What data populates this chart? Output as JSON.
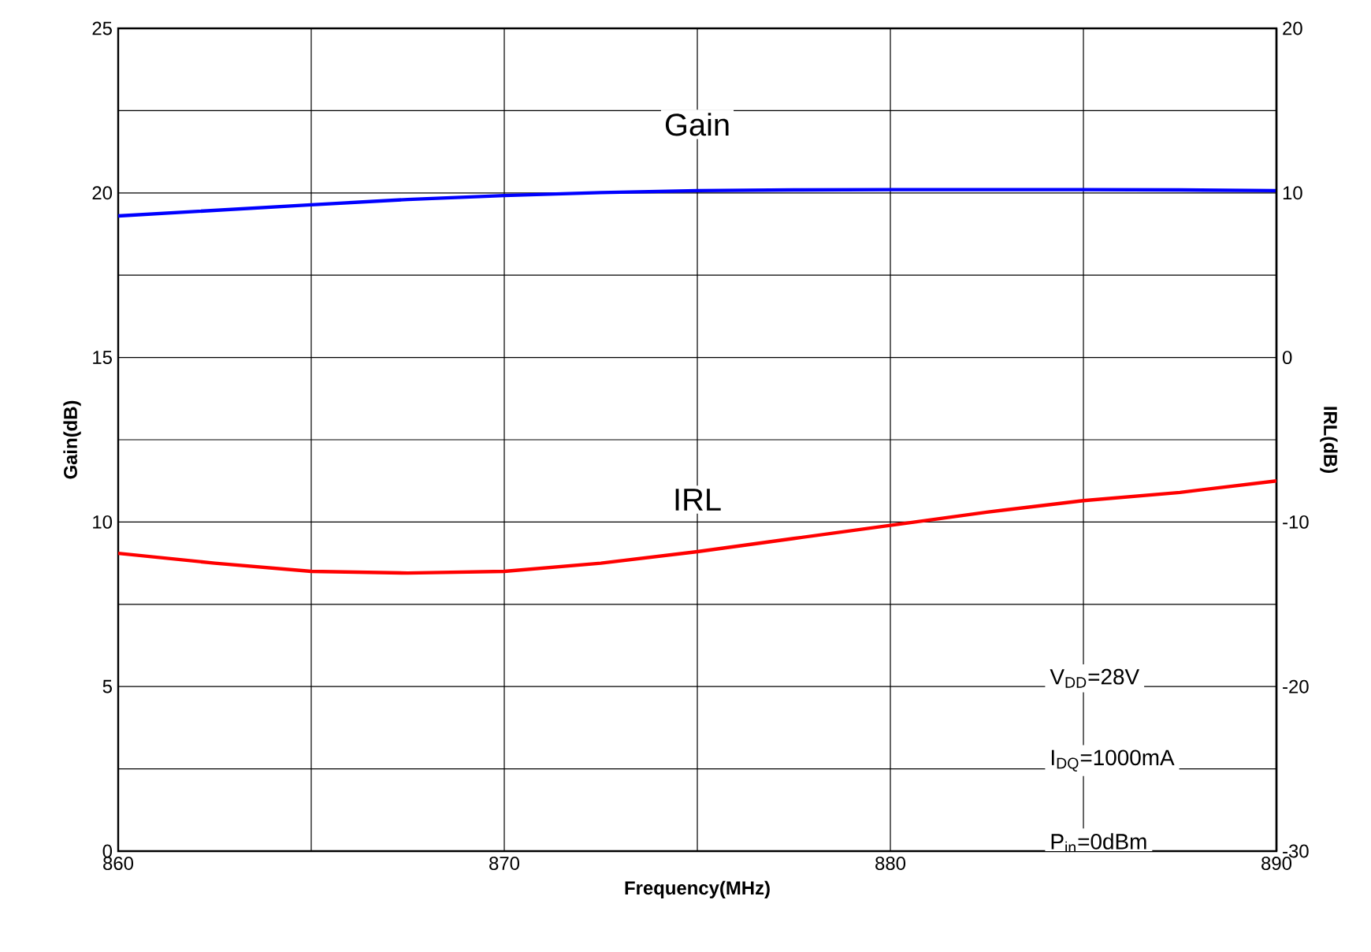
{
  "chart_data": {
    "type": "line",
    "xlabel": "Frequency(MHz)",
    "ylabel": "Gain(dB)",
    "y2label": "IRL(dB)",
    "xlim": [
      860,
      890
    ],
    "xticks": [
      860,
      {
        "value": 865,
        "label": null
      },
      870,
      {
        "value": 875,
        "label": null
      },
      880,
      {
        "value": 885,
        "label": null
      },
      890
    ],
    "ylim": [
      0,
      25
    ],
    "yticks": [
      0,
      {
        "value": 2.5,
        "label": null
      },
      5,
      {
        "value": 7.5,
        "label": null
      },
      10,
      {
        "value": 12.5,
        "label": null
      },
      15,
      {
        "value": 17.5,
        "label": null
      },
      20,
      {
        "value": 22.5,
        "label": null
      },
      25
    ],
    "y2lim": [
      -30,
      20
    ],
    "y2ticks": [
      -30,
      -20,
      -10,
      0,
      10,
      20
    ],
    "grid": true,
    "marker": "none",
    "line_style": "solid",
    "series": [
      {
        "name": "Gain",
        "color": "#0000ff",
        "x": [
          860,
          862.5,
          865,
          867.5,
          870,
          872.5,
          875,
          877.5,
          880,
          882.5,
          885,
          887.5,
          890
        ],
        "values": [
          19.3,
          19.47,
          19.64,
          19.8,
          19.92,
          20.01,
          20.07,
          20.09,
          20.1,
          20.1,
          20.1,
          20.09,
          20.07
        ]
      },
      {
        "name": "IRL",
        "color": "#ff0000",
        "axis": "y2",
        "x": [
          860,
          862.5,
          865,
          867.5,
          870,
          872.5,
          875,
          877.5,
          880,
          882.5,
          885,
          887.5,
          890
        ],
        "values": [
          -11.9,
          -12.5,
          -13,
          -13.1,
          -13,
          -12.5,
          -11.8,
          -11,
          -10.2,
          -9.4,
          -8.7,
          -8.2,
          -7.5
        ]
      }
    ],
    "annotations": [
      "V$_{DD}$=28V",
      "I$_{DQ}$=1000mA",
      "P$_{in}$=0dBm"
    ]
  }
}
